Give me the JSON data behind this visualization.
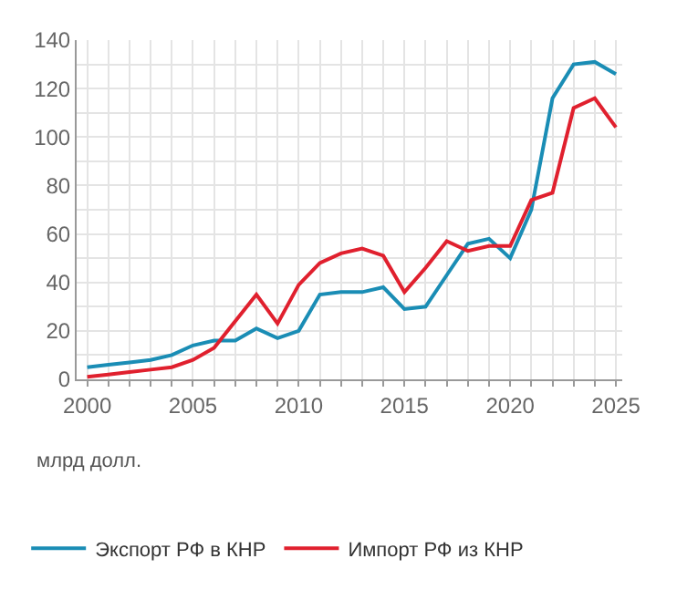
{
  "chart_data": {
    "type": "line",
    "x": [
      2000,
      2001,
      2002,
      2003,
      2004,
      2005,
      2006,
      2007,
      2008,
      2009,
      2010,
      2011,
      2012,
      2013,
      2014,
      2015,
      2016,
      2017,
      2018,
      2019,
      2020,
      2021,
      2022,
      2023,
      2024,
      2025
    ],
    "series": [
      {
        "name": "Экспорт РФ в КНР",
        "color": "#1a8db5",
        "values": [
          5,
          6,
          7,
          8,
          10,
          14,
          16,
          16,
          21,
          17,
          20,
          35,
          36,
          36,
          38,
          29,
          30,
          43,
          56,
          58,
          50,
          70,
          116,
          130,
          131,
          126
        ]
      },
      {
        "name": "Импорт РФ из КНР",
        "color": "#e0202e",
        "values": [
          1,
          2,
          3,
          4,
          5,
          8,
          13,
          24,
          35,
          23,
          39,
          48,
          52,
          54,
          51,
          36,
          46,
          57,
          53,
          55,
          55,
          74,
          77,
          112,
          116,
          104
        ]
      }
    ],
    "xlim": [
      1999.5,
      2025.3
    ],
    "xticks": [
      2000,
      {
        "value": 2001,
        "label": null
      },
      {
        "value": 2002,
        "label": null
      },
      {
        "value": 2003,
        "label": null
      },
      {
        "value": 2004,
        "label": null
      },
      2005,
      {
        "value": 2006,
        "label": null
      },
      {
        "value": 2007,
        "label": null
      },
      {
        "value": 2008,
        "label": null
      },
      {
        "value": 2009,
        "label": null
      },
      2010,
      {
        "value": 2011,
        "label": null
      },
      {
        "value": 2012,
        "label": null
      },
      {
        "value": 2013,
        "label": null
      },
      {
        "value": 2014,
        "label": null
      },
      2015,
      {
        "value": 2016,
        "label": null
      },
      {
        "value": 2017,
        "label": null
      },
      {
        "value": 2018,
        "label": null
      },
      {
        "value": 2019,
        "label": null
      },
      2020,
      {
        "value": 2021,
        "label": null
      },
      {
        "value": 2022,
        "label": null
      },
      {
        "value": 2023,
        "label": null
      },
      {
        "value": 2024,
        "label": null
      },
      2025
    ],
    "ylim": [
      0,
      140
    ],
    "yticks": [
      0,
      {
        "value": 10,
        "label": null
      },
      20,
      {
        "value": 30,
        "label": null
      },
      40,
      {
        "value": 50,
        "label": null
      },
      60,
      {
        "value": 70,
        "label": null
      },
      80,
      {
        "value": 90,
        "label": null
      },
      100,
      {
        "value": 110,
        "label": null
      },
      120,
      {
        "value": 130,
        "label": null
      },
      140
    ],
    "grid": true,
    "legend": "bottom",
    "marker": "none",
    "line_style": "solid",
    "annotations": [
      "млрд долл."
    ]
  }
}
